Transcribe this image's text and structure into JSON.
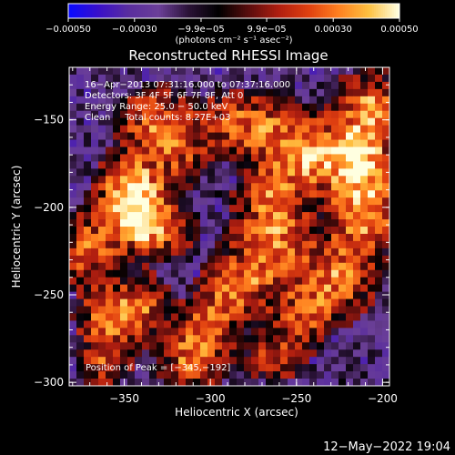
{
  "chart_data": {
    "type": "heatmap",
    "title": "Reconstructed RHESSI Image",
    "xlabel": "Heliocentric X (arcsec)",
    "ylabel": "Heliocentric Y (arcsec)",
    "xlim": [
      -382,
      -196
    ],
    "ylim": [
      -302,
      -120
    ],
    "xticks": [
      -350,
      -300,
      -250,
      -200
    ],
    "xtick_labels": [
      "−350",
      "−300",
      "−250",
      "−200"
    ],
    "yticks": [
      -150,
      -200,
      -250,
      -300
    ],
    "ytick_labels": [
      "−150",
      "−200",
      "−250",
      "−300"
    ],
    "colorbar": {
      "range": [
        -0.0005,
        0.0005
      ],
      "ticks": [
        -0.0005,
        -0.0003,
        -9.9e-05,
        9.9e-05,
        0.0003,
        0.0005
      ],
      "tick_labels": [
        "−0.00050",
        "−0.00030",
        "−9.9e−05",
        "9.9e−05",
        "0.00030",
        "0.00050"
      ],
      "unit_label": "(photons cm⁻² s⁻¹ asec⁻²)",
      "colormap": [
        "#0a0aff",
        "#3a10c8",
        "#5a2e9e",
        "#6b3f98",
        "#2a1236",
        "#000000",
        "#5a0d0d",
        "#b01e10",
        "#e04010",
        "#ff8020",
        "#ffc040",
        "#ffffe0"
      ]
    },
    "info_lines": [
      "16−Apr−2013 07:31:16.000 to 07:37:16.000",
      "Detectors: 3F 4F 5F 6F 7F 8F, Att 0",
      "Energy Range: 25.0 − 50.0 keV",
      "Clean     Total counts: 8.27E+03"
    ],
    "peak_label": "Position of Peak = [−345,−192]",
    "peak": [
      -345,
      -192
    ],
    "emission_sources": [
      {
        "center": [
          -345,
          -192
        ],
        "sigma": [
          12,
          14
        ],
        "intensity": 1.0
      },
      {
        "center": [
          -332,
          -150
        ],
        "sigma": [
          14,
          12
        ],
        "intensity": 0.55
      },
      {
        "center": [
          -335,
          -213
        ],
        "sigma": [
          15,
          10
        ],
        "intensity": 0.65
      },
      {
        "center": [
          -370,
          -225
        ],
        "sigma": [
          10,
          14
        ],
        "intensity": 0.55
      },
      {
        "center": [
          -358,
          -265
        ],
        "sigma": [
          12,
          12
        ],
        "intensity": 0.6
      },
      {
        "center": [
          -340,
          -255
        ],
        "sigma": [
          10,
          10
        ],
        "intensity": 0.5
      },
      {
        "center": [
          -362,
          -290
        ],
        "sigma": [
          10,
          8
        ],
        "intensity": 0.4
      },
      {
        "center": [
          -310,
          -285
        ],
        "sigma": [
          12,
          12
        ],
        "intensity": 0.65
      },
      {
        "center": [
          -300,
          -263
        ],
        "sigma": [
          10,
          10
        ],
        "intensity": 0.4
      },
      {
        "center": [
          -283,
          -245
        ],
        "sigma": [
          14,
          12
        ],
        "intensity": 0.55
      },
      {
        "center": [
          -262,
          -222
        ],
        "sigma": [
          16,
          14
        ],
        "intensity": 0.6
      },
      {
        "center": [
          -265,
          -195
        ],
        "sigma": [
          12,
          12
        ],
        "intensity": 0.5
      },
      {
        "center": [
          -270,
          -155
        ],
        "sigma": [
          14,
          14
        ],
        "intensity": 0.5
      },
      {
        "center": [
          -245,
          -170
        ],
        "sigma": [
          14,
          14
        ],
        "intensity": 0.65
      },
      {
        "center": [
          -215,
          -175
        ],
        "sigma": [
          14,
          14
        ],
        "intensity": 0.8
      },
      {
        "center": [
          -208,
          -145
        ],
        "sigma": [
          12,
          14
        ],
        "intensity": 0.7
      },
      {
        "center": [
          -210,
          -205
        ],
        "sigma": [
          12,
          14
        ],
        "intensity": 0.7
      },
      {
        "center": [
          -225,
          -240
        ],
        "sigma": [
          14,
          14
        ],
        "intensity": 0.6
      },
      {
        "center": [
          -245,
          -260
        ],
        "sigma": [
          12,
          12
        ],
        "intensity": 0.45
      },
      {
        "center": [
          -262,
          -285
        ],
        "sigma": [
          12,
          10
        ],
        "intensity": 0.4
      },
      {
        "center": [
          -318,
          -168
        ],
        "sigma": [
          12,
          12
        ],
        "intensity": 0.4
      },
      {
        "center": [
          -292,
          -150
        ],
        "sigma": [
          10,
          10
        ],
        "intensity": 0.35
      }
    ],
    "grid": false,
    "legend": "none"
  },
  "footer": {
    "timestamp": "12−May−2022 19:04"
  }
}
